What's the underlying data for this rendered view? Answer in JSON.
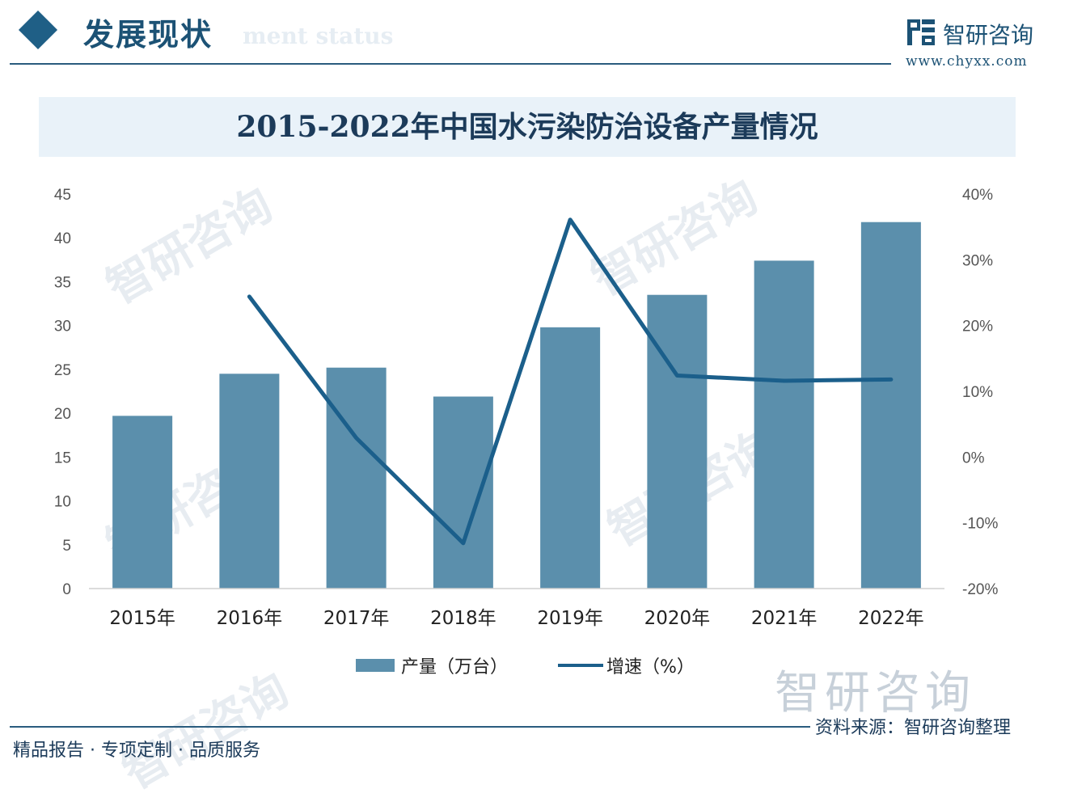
{
  "header": {
    "section_title": "发展现状",
    "section_title_en": "ment status",
    "brand_name": "智研咨询",
    "brand_url": "www.chyxx.com"
  },
  "watermark": {
    "text": "智研咨询",
    "brand_large": "智研咨询"
  },
  "footer": {
    "left": "精品报告 · 专项定制 · 品质服务",
    "right": "资料来源：智研咨询整理"
  },
  "colors": {
    "bar": "#5b8fac",
    "line": "#1b5f8b",
    "title": "#1c3b5a",
    "accent": "#1f5f86"
  },
  "chart_data": {
    "type": "bar",
    "title": "2015-2022年中国水污染防治设备产量情况",
    "categories": [
      "2015年",
      "2016年",
      "2017年",
      "2018年",
      "2019年",
      "2020年",
      "2021年",
      "2022年"
    ],
    "series": [
      {
        "name": "产量（万台）",
        "type": "bar",
        "axis": "left",
        "values": [
          19.7,
          24.5,
          25.2,
          21.9,
          29.8,
          33.5,
          37.4,
          41.8
        ]
      },
      {
        "name": "增速（%）",
        "type": "line",
        "axis": "right",
        "values": [
          null,
          24.4,
          2.9,
          -13.1,
          36.1,
          12.4,
          11.6,
          11.8
        ]
      }
    ],
    "y_left": {
      "min": 0,
      "max": 45,
      "ticks": [
        "0",
        "5",
        "10",
        "15",
        "20",
        "25",
        "30",
        "35",
        "40",
        "45"
      ]
    },
    "y_right": {
      "min": -20,
      "max": 40,
      "ticks": [
        "-20%",
        "-10%",
        "0%",
        "10%",
        "20%",
        "30%",
        "40%"
      ]
    },
    "grid": false,
    "legend": "bottom"
  }
}
